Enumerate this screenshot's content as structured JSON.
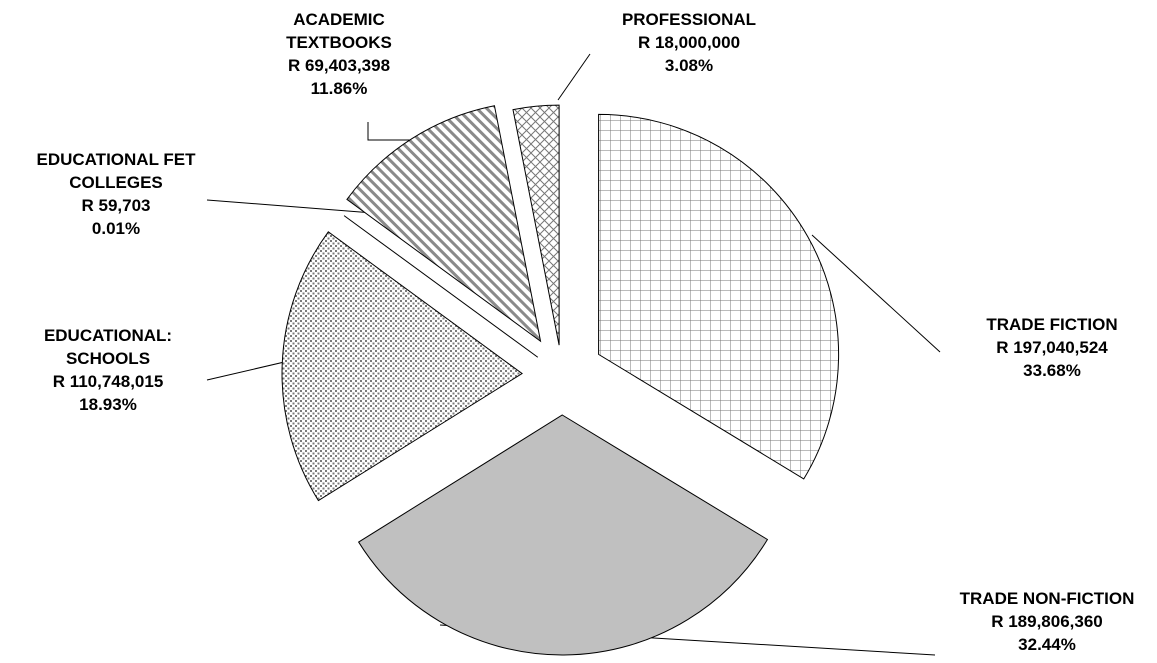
{
  "chart_data": {
    "type": "pie",
    "title": "",
    "exploded": true,
    "slices": [
      {
        "name": "TRADE FICTION",
        "label_lines": [
          "TRADE FICTION"
        ],
        "value": 197040524,
        "value_text": "R 197,040,524",
        "percent": 33.68,
        "percent_text": "33.68%",
        "fill": "grid"
      },
      {
        "name": "TRADE NON-FICTION",
        "label_lines": [
          "TRADE NON-FICTION"
        ],
        "value": 189806360,
        "value_text": "R 189,806,360",
        "percent": 32.44,
        "percent_text": "32.44%",
        "fill": "solid-gray"
      },
      {
        "name": "EDUCATIONAL: SCHOOLS",
        "label_lines": [
          "EDUCATIONAL:",
          "SCHOOLS"
        ],
        "value": 110748015,
        "value_text": "R 110,748,015",
        "percent": 18.93,
        "percent_text": "18.93%",
        "fill": "dots"
      },
      {
        "name": "EDUCATIONAL FET COLLEGES",
        "label_lines": [
          "EDUCATIONAL FET",
          "COLLEGES"
        ],
        "value": 59703,
        "value_text": "R 59,703",
        "percent": 0.01,
        "percent_text": "0.01%",
        "fill": "dots"
      },
      {
        "name": "ACADEMIC TEXTBOOKS",
        "label_lines": [
          "ACADEMIC",
          "TEXTBOOKS"
        ],
        "value": 69403398,
        "value_text": "R 69,403,398",
        "percent": 11.86,
        "percent_text": "11.86%",
        "fill": "diagonal-stripes"
      },
      {
        "name": "PROFESSIONAL",
        "label_lines": [
          "PROFESSIONAL"
        ],
        "value": 18000000,
        "value_text": "R 18,000,000",
        "percent": 3.08,
        "percent_text": "3.08%",
        "fill": "diagonal-crosshatch"
      }
    ],
    "colors": {
      "stroke": "#000000",
      "solid_gray": "#c0c0c0",
      "pattern_ink": "#777777",
      "background": "#ffffff"
    }
  }
}
